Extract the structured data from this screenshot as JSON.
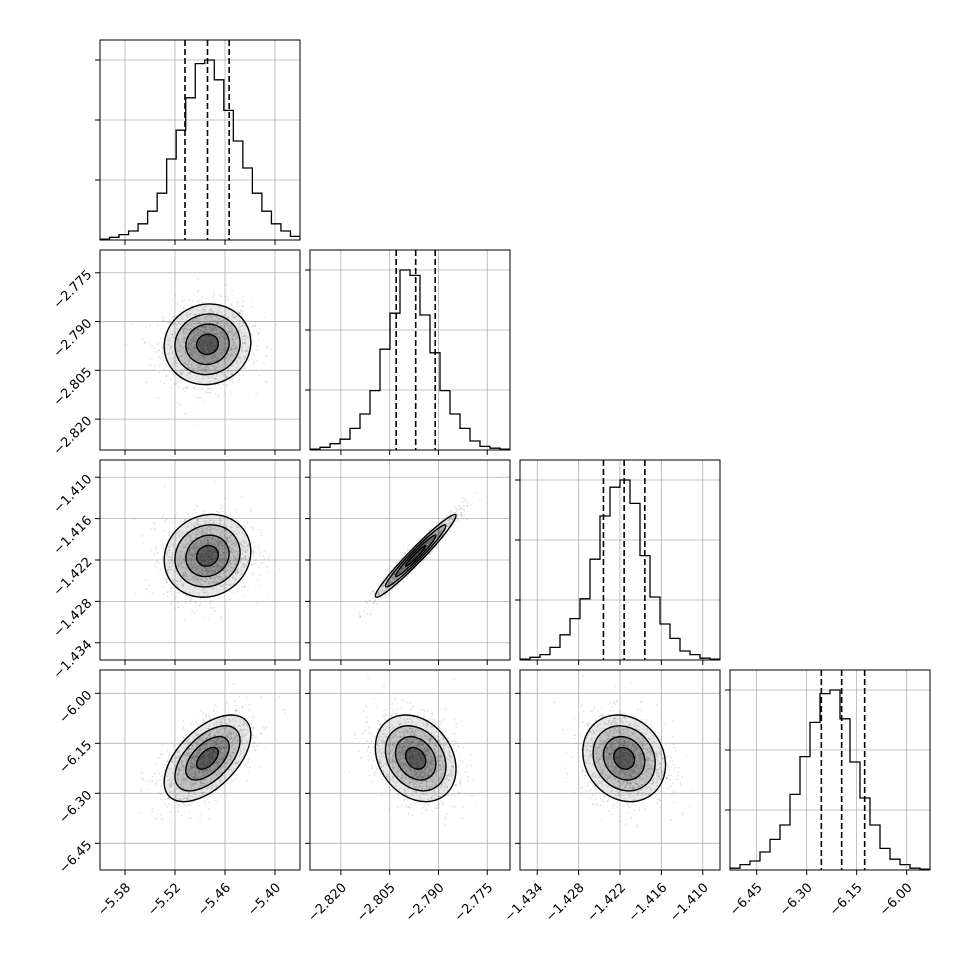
{
  "chart_data": {
    "type": "corner",
    "grid": true,
    "colors": {
      "line": "#000000",
      "grid": "#b0b0b0",
      "scatter": "#808080",
      "density_dark": "#000000",
      "background": "#ffffff"
    },
    "parameters": [
      {
        "range": [
          -5.61,
          -5.37
        ],
        "ticks": [
          "−5.58",
          "−5.52",
          "−5.46",
          "−5.40"
        ],
        "tick_values": [
          -5.58,
          -5.52,
          -5.46,
          -5.4
        ],
        "quantiles": [
          -5.508,
          -5.481,
          -5.455
        ],
        "center": -5.481,
        "sigma": 0.026
      },
      {
        "range": [
          -2.8295,
          -2.768
        ],
        "ticks": [
          "−2.820",
          "−2.805",
          "−2.790",
          "−2.775"
        ],
        "tick_values": [
          -2.82,
          -2.805,
          -2.79,
          -2.775
        ],
        "quantiles": [
          -2.803,
          -2.797,
          -2.791
        ],
        "center": -2.797,
        "sigma": 0.0062
      },
      {
        "range": [
          -1.4365,
          -1.4075
        ],
        "ticks": [
          "−1.434",
          "−1.428",
          "−1.422",
          "−1.416",
          "−1.410"
        ],
        "tick_values": [
          -1.434,
          -1.428,
          -1.422,
          -1.416,
          -1.41
        ],
        "quantiles": [
          -1.4244,
          -1.4214,
          -1.4184
        ],
        "center": -1.4214,
        "sigma": 0.003
      },
      {
        "range": [
          -6.53,
          -5.93
        ],
        "ticks": [
          "−6.45",
          "−6.30",
          "−6.15",
          "−6.00"
        ],
        "tick_values": [
          -6.45,
          -6.3,
          -6.15,
          -6.0
        ],
        "quantiles": [
          -6.256,
          -6.195,
          -6.126
        ],
        "center": -6.195,
        "sigma": 0.065
      }
    ],
    "correlations": {
      "1-0": 0.05,
      "2-0": 0.1,
      "2-1": 0.97,
      "3-0": 0.55,
      "3-1": -0.25,
      "3-2": -0.15
    },
    "histograms": [
      [
        0.005,
        0.015,
        0.03,
        0.05,
        0.09,
        0.16,
        0.26,
        0.45,
        0.61,
        0.79,
        0.98,
        1.0,
        0.89,
        0.72,
        0.55,
        0.4,
        0.26,
        0.16,
        0.09,
        0.05,
        0.02
      ],
      [
        0.005,
        0.015,
        0.035,
        0.06,
        0.12,
        0.2,
        0.33,
        0.56,
        0.76,
        1.0,
        0.97,
        0.75,
        0.54,
        0.33,
        0.2,
        0.12,
        0.05,
        0.02,
        0.01,
        0.005
      ],
      [
        0.005,
        0.015,
        0.03,
        0.07,
        0.14,
        0.23,
        0.34,
        0.56,
        0.8,
        0.96,
        1.0,
        0.87,
        0.58,
        0.35,
        0.2,
        0.12,
        0.05,
        0.03,
        0.01,
        0.005
      ],
      [
        0.01,
        0.03,
        0.05,
        0.1,
        0.17,
        0.25,
        0.42,
        0.63,
        0.82,
        0.98,
        1.0,
        0.84,
        0.6,
        0.4,
        0.25,
        0.12,
        0.06,
        0.03,
        0.01,
        0.005
      ]
    ]
  }
}
